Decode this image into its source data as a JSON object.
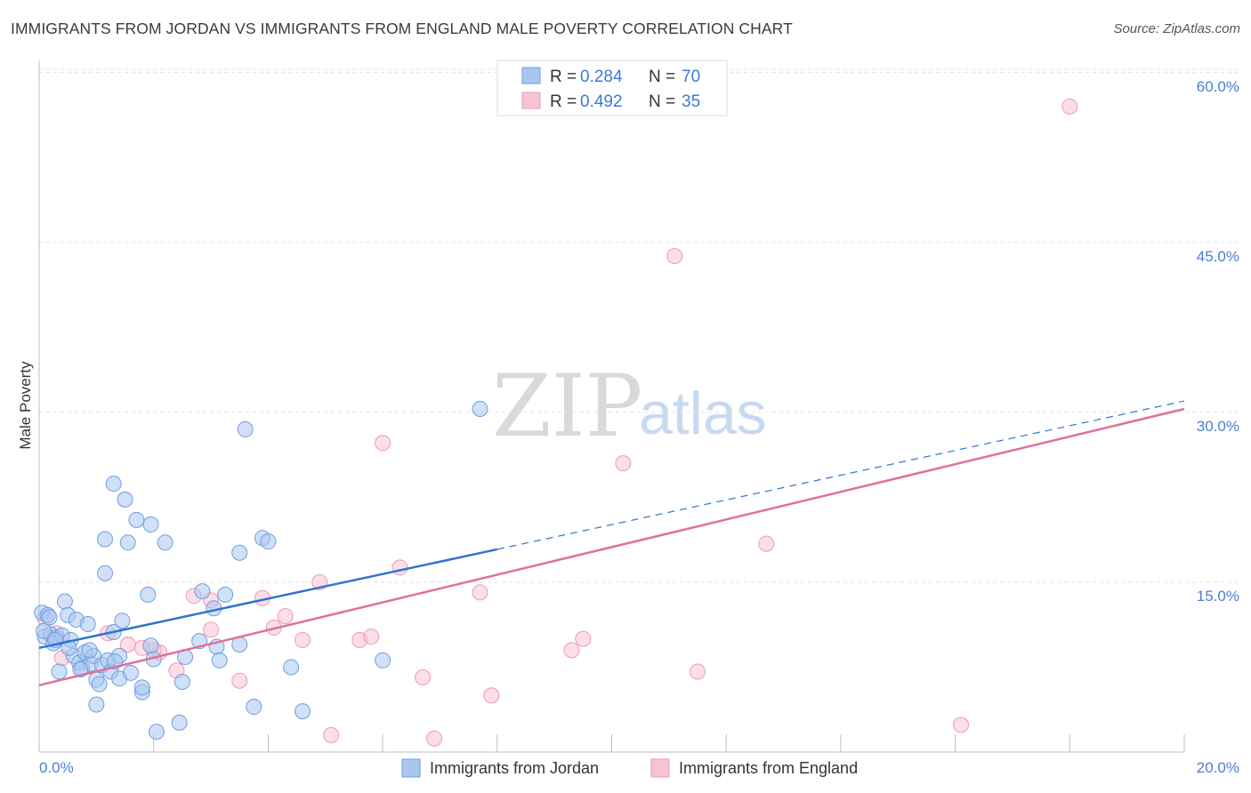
{
  "header": {
    "title": "IMMIGRANTS FROM JORDAN VS IMMIGRANTS FROM ENGLAND MALE POVERTY CORRELATION CHART",
    "source": "Source: ZipAtlas.com"
  },
  "watermark": {
    "part1": "ZIP",
    "part2": "atlas"
  },
  "colors": {
    "jordan_fill": "#a9c6ef",
    "jordan_stroke": "#6f9ee0",
    "jordan_line": "#2f74d0",
    "england_fill": "#f7c3d4",
    "england_stroke": "#ee9ab6",
    "england_line": "#e0709a",
    "tick_text": "#4a7fd6",
    "grid": "#e2e2e2"
  },
  "legend": {
    "r_label": "R =",
    "n_label": "N =",
    "jordan": {
      "r": "0.284",
      "n": "70"
    },
    "england": {
      "r": "0.492",
      "n": "35"
    }
  },
  "chart_data": {
    "type": "scatter",
    "title": "IMMIGRANTS FROM JORDAN VS IMMIGRANTS FROM ENGLAND MALE POVERTY CORRELATION CHART",
    "xlabel": "",
    "ylabel": "Male Poverty",
    "xlim": [
      0,
      20
    ],
    "ylim": [
      0,
      63
    ],
    "x_tick_labels": [
      "0.0%",
      "20.0%"
    ],
    "y_ticks": [
      15,
      30,
      45,
      60
    ],
    "y_tick_labels": [
      "15.0%",
      "30.0%",
      "45.0%",
      "60.0%"
    ],
    "grid": true,
    "legend_placement": "top-center",
    "series": [
      {
        "name": "Immigrants from Jordan",
        "r": 0.284,
        "n": 70,
        "trend": {
          "x0": 0,
          "y0": 9.2,
          "x1": 8,
          "y1": 17.9,
          "dash_to_x": 20,
          "dash_to_y": 31.0
        },
        "points": [
          [
            0.05,
            12.3
          ],
          [
            0.1,
            10.2
          ],
          [
            0.15,
            12.1
          ],
          [
            0.2,
            10.4
          ],
          [
            0.25,
            9.6
          ],
          [
            0.3,
            10.1
          ],
          [
            0.35,
            7.1
          ],
          [
            0.4,
            10.3
          ],
          [
            0.45,
            13.3
          ],
          [
            0.5,
            12.1
          ],
          [
            0.55,
            9.9
          ],
          [
            0.6,
            8.5
          ],
          [
            0.65,
            11.7
          ],
          [
            0.7,
            7.9
          ],
          [
            0.75,
            7.4
          ],
          [
            0.8,
            8.8
          ],
          [
            0.85,
            11.3
          ],
          [
            0.9,
            7.8
          ],
          [
            0.95,
            8.5
          ],
          [
            1.0,
            6.4
          ],
          [
            1.0,
            4.2
          ],
          [
            1.05,
            6.0
          ],
          [
            1.1,
            7.7
          ],
          [
            1.15,
            18.8
          ],
          [
            1.15,
            15.8
          ],
          [
            1.2,
            8.1
          ],
          [
            1.25,
            7.1
          ],
          [
            1.3,
            23.7
          ],
          [
            1.3,
            10.6
          ],
          [
            1.4,
            8.5
          ],
          [
            1.4,
            6.5
          ],
          [
            1.45,
            11.6
          ],
          [
            1.5,
            22.3
          ],
          [
            1.55,
            18.5
          ],
          [
            1.6,
            7.0
          ],
          [
            1.7,
            20.5
          ],
          [
            1.8,
            5.3
          ],
          [
            1.8,
            5.7
          ],
          [
            1.9,
            13.9
          ],
          [
            1.95,
            9.4
          ],
          [
            1.95,
            20.1
          ],
          [
            2.0,
            8.2
          ],
          [
            2.05,
            1.8
          ],
          [
            2.2,
            18.5
          ],
          [
            2.45,
            2.6
          ],
          [
            2.5,
            6.2
          ],
          [
            2.55,
            8.4
          ],
          [
            2.8,
            9.8
          ],
          [
            2.85,
            14.2
          ],
          [
            3.05,
            12.7
          ],
          [
            3.1,
            9.3
          ],
          [
            3.15,
            8.1
          ],
          [
            3.25,
            13.9
          ],
          [
            3.5,
            17.6
          ],
          [
            3.5,
            9.5
          ],
          [
            3.6,
            28.5
          ],
          [
            3.75,
            4.0
          ],
          [
            3.9,
            18.9
          ],
          [
            4.0,
            18.6
          ],
          [
            4.4,
            7.5
          ],
          [
            4.6,
            3.6
          ],
          [
            6.0,
            8.1
          ],
          [
            7.7,
            30.3
          ],
          [
            0.08,
            10.7
          ],
          [
            0.28,
            9.9
          ],
          [
            0.52,
            9.2
          ],
          [
            0.72,
            7.3
          ],
          [
            0.88,
            9.0
          ],
          [
            1.32,
            8.0
          ],
          [
            0.18,
            11.9
          ]
        ]
      },
      {
        "name": "Immigrants from England",
        "r": 0.492,
        "n": 35,
        "trend": {
          "x0": 0,
          "y0": 5.9,
          "x1": 20,
          "y1": 30.3
        },
        "points": [
          [
            0.1,
            11.8
          ],
          [
            0.4,
            8.3
          ],
          [
            1.2,
            10.5
          ],
          [
            1.55,
            9.5
          ],
          [
            1.8,
            9.2
          ],
          [
            2.1,
            8.8
          ],
          [
            2.4,
            7.2
          ],
          [
            2.7,
            13.8
          ],
          [
            3.0,
            13.4
          ],
          [
            3.0,
            10.8
          ],
          [
            3.5,
            6.3
          ],
          [
            3.9,
            13.6
          ],
          [
            4.1,
            11.0
          ],
          [
            4.3,
            12.0
          ],
          [
            4.6,
            9.9
          ],
          [
            4.9,
            15.0
          ],
          [
            5.1,
            1.5
          ],
          [
            5.6,
            9.9
          ],
          [
            5.8,
            10.2
          ],
          [
            6.0,
            27.3
          ],
          [
            6.3,
            16.3
          ],
          [
            6.7,
            6.6
          ],
          [
            6.9,
            1.2
          ],
          [
            7.7,
            14.1
          ],
          [
            7.9,
            5.0
          ],
          [
            9.3,
            9.0
          ],
          [
            9.5,
            10.0
          ],
          [
            10.2,
            25.5
          ],
          [
            11.1,
            43.8
          ],
          [
            11.5,
            7.1
          ],
          [
            12.7,
            18.4
          ],
          [
            16.1,
            2.4
          ],
          [
            18.0,
            57.0
          ],
          [
            0.3,
            10.5
          ],
          [
            2.0,
            9.0
          ]
        ]
      }
    ]
  }
}
